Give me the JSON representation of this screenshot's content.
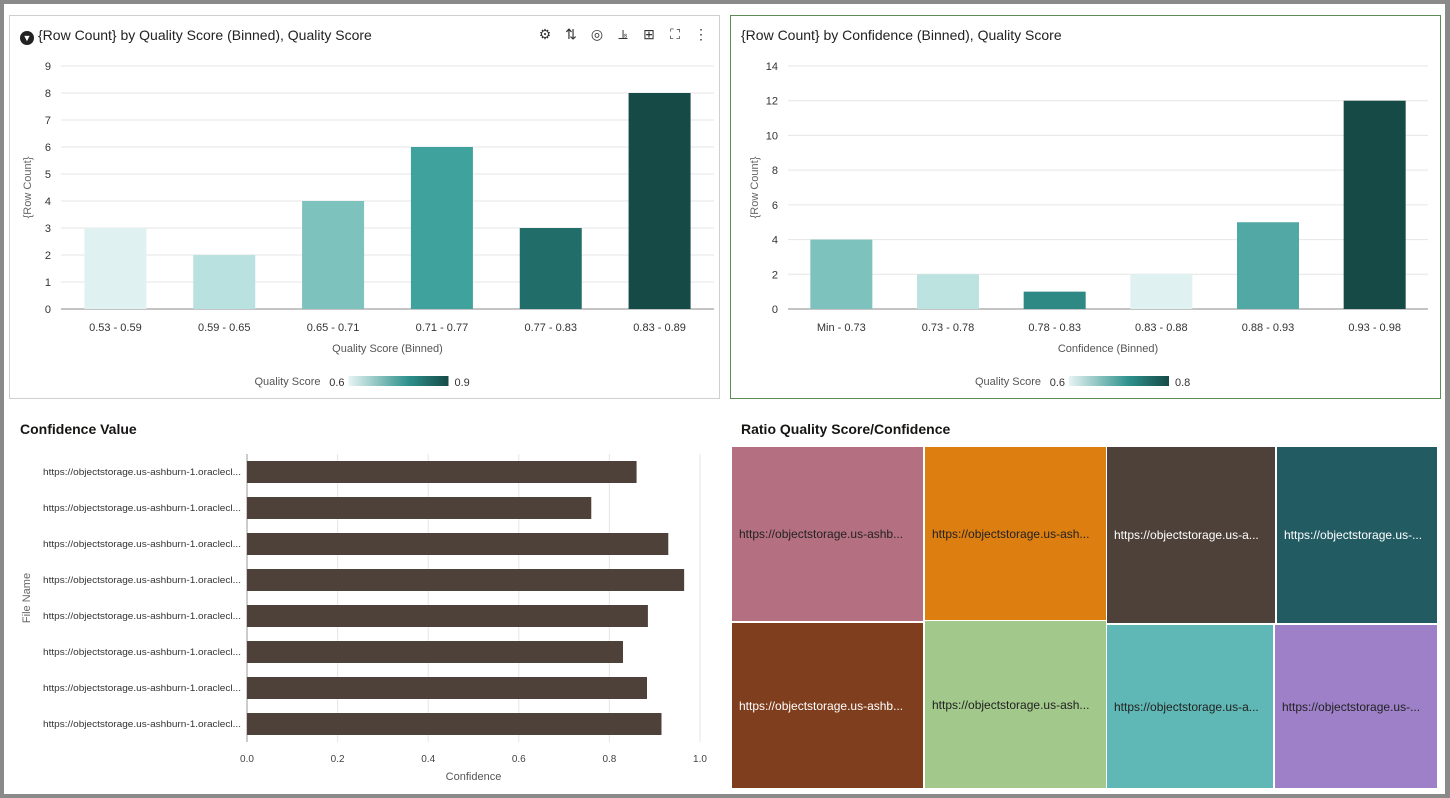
{
  "panels": {
    "quality": {
      "title": "{Row Count} by Quality Score (Binned), Quality Score",
      "filter_icon": "filter-icon",
      "toolbar": [
        "data-actions-icon",
        "sort-icon",
        "target-icon",
        "chart-properties-icon",
        "add-canvas-icon",
        "maximize-icon",
        "more-options-icon"
      ]
    },
    "confidence": {
      "title": "{Row Count} by Confidence (Binned), Quality Score"
    },
    "confidence_value": {
      "title": "Confidence Value"
    },
    "ratio": {
      "title": "Ratio Quality Score/Confidence"
    }
  },
  "chart_data": [
    {
      "type": "bar",
      "title": "{Row Count} by Quality Score (Binned), Quality Score",
      "xlabel": "Quality Score (Binned)",
      "ylabel": "{Row Count}",
      "categories": [
        "0.53 - 0.59",
        "0.59 - 0.65",
        "0.65 - 0.71",
        "0.71 - 0.77",
        "0.77 - 0.83",
        "0.83 - 0.89"
      ],
      "values": [
        3,
        2,
        4,
        6,
        3,
        8
      ],
      "colors": [
        "#dff1f0",
        "#b9e1df",
        "#7dc2bc",
        "#3fa29d",
        "#206d69",
        "#154a47"
      ],
      "yticks": [
        0,
        1,
        2,
        3,
        4,
        5,
        6,
        7,
        8,
        9
      ],
      "ylim": [
        0,
        9
      ],
      "grid": true,
      "legend": {
        "label": "Quality Score",
        "min": "0.6",
        "max": "0.9",
        "placement": "bottom"
      }
    },
    {
      "type": "bar",
      "title": "{Row Count} by Confidence (Binned), Quality Score",
      "xlabel": "Confidence (Binned)",
      "ylabel": "{Row Count}",
      "categories": [
        "Min - 0.73",
        "0.73 - 0.78",
        "0.78 - 0.83",
        "0.83 - 0.88",
        "0.88 - 0.93",
        "0.93 - 0.98"
      ],
      "values": [
        4,
        2,
        1,
        2,
        5,
        12
      ],
      "colors": [
        "#7dc2bc",
        "#bde3e1",
        "#2e8985",
        "#dff1f0",
        "#52a8a4",
        "#154a47"
      ],
      "yticks": [
        0,
        2,
        4,
        6,
        8,
        10,
        12,
        14
      ],
      "ylim": [
        0,
        14
      ],
      "grid": true,
      "legend": {
        "label": "Quality Score",
        "min": "0.6",
        "max": "0.8",
        "placement": "bottom"
      }
    },
    {
      "type": "bar",
      "orientation": "horizontal",
      "title": "Confidence Value",
      "xlabel": "Confidence",
      "ylabel": "File Name",
      "categories": [
        "https://objectstorage.us-ashburn-1.oraclecl...",
        "https://objectstorage.us-ashburn-1.oraclecl...",
        "https://objectstorage.us-ashburn-1.oraclecl...",
        "https://objectstorage.us-ashburn-1.oraclecl...",
        "https://objectstorage.us-ashburn-1.oraclecl...",
        "https://objectstorage.us-ashburn-1.oraclecl...",
        "https://objectstorage.us-ashburn-1.oraclecl...",
        "https://objectstorage.us-ashburn-1.oraclecl..."
      ],
      "values": [
        0.86,
        0.76,
        0.93,
        0.965,
        0.885,
        0.83,
        0.883,
        0.915
      ],
      "color": "#4d4139",
      "xticks": [
        "0.0",
        "0.2",
        "0.4",
        "0.6",
        "0.8",
        "1.0"
      ],
      "xlim": [
        0,
        1
      ],
      "grid": true
    },
    {
      "type": "treemap",
      "title": "Ratio Quality Score/Confidence",
      "tiles": [
        {
          "label": "https://objectstorage.us-ashb...",
          "color": "#b47080",
          "text": "#222"
        },
        {
          "label": "https://objectstorage.us-ash...",
          "color": "#dd7e10",
          "text": "#222"
        },
        {
          "label": "https://objectstorage.us-a...",
          "color": "#4d4139",
          "text": "#fff"
        },
        {
          "label": "https://objectstorage.us-...",
          "color": "#235b63",
          "text": "#fff"
        },
        {
          "label": "https://objectstorage.us-ashb...",
          "color": "#7f3e1e",
          "text": "#fff"
        },
        {
          "label": "https://objectstorage.us-ash...",
          "color": "#a2c98b",
          "text": "#222"
        },
        {
          "label": "https://objectstorage.us-a...",
          "color": "#5fb8b5",
          "text": "#222"
        },
        {
          "label": "https://objectstorage.us-...",
          "color": "#9e80c9",
          "text": "#222"
        }
      ]
    }
  ]
}
